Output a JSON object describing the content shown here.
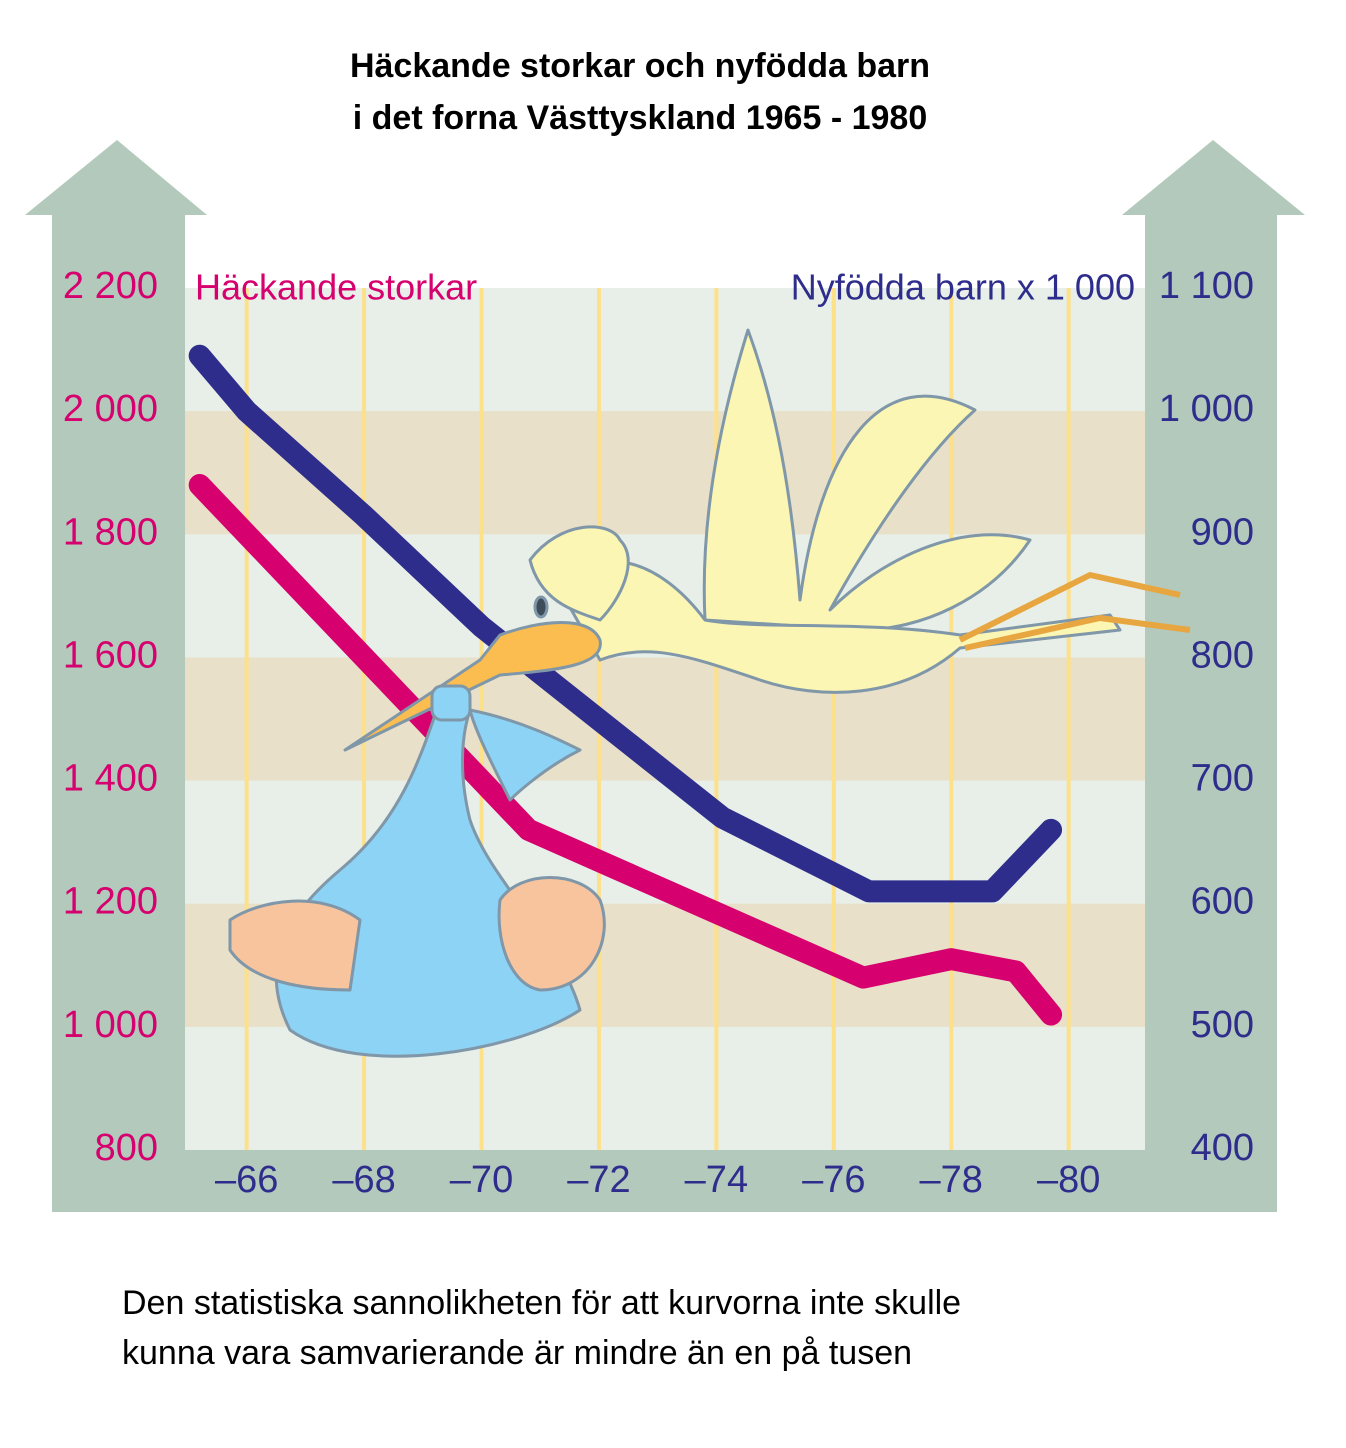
{
  "chart_data": {
    "type": "line",
    "title": [
      "Häckande storkar och nyfödda barn",
      "i det forna Västtyskland 1965 - 1980"
    ],
    "caption": [
      "Den statistiska sannolikheten för att kurvorna inte skulle",
      "kunna vara samvarierande är mindre än en på tusen"
    ],
    "xlim": [
      1964.95,
      1981.3
    ],
    "xticks": [
      {
        "value": 1966,
        "label": "–66"
      },
      {
        "value": 1968,
        "label": "–68"
      },
      {
        "value": 1970,
        "label": "–70"
      },
      {
        "value": 1972,
        "label": "–72"
      },
      {
        "value": 1974,
        "label": "–74"
      },
      {
        "value": 1976,
        "label": "–76"
      },
      {
        "value": 1978,
        "label": "–78"
      },
      {
        "value": 1980,
        "label": "–80"
      }
    ],
    "ylim": [
      800,
      2200
    ],
    "yticks": [
      800,
      {
        "value": 1000,
        "label": "1 000"
      },
      {
        "value": 1200,
        "label": "1 200"
      },
      {
        "value": 1400,
        "label": "1 400"
      },
      {
        "value": 1600,
        "label": "1 600"
      },
      {
        "value": 1800,
        "label": "1 800"
      },
      {
        "value": 2000,
        "label": "2 000"
      },
      {
        "value": 2200,
        "label": "2 200"
      }
    ],
    "y2lim": [
      400,
      1100
    ],
    "y2ticks": [
      400,
      500,
      600,
      700,
      800,
      900,
      {
        "value": 1000,
        "label": "1 000"
      },
      {
        "value": 1100,
        "label": "1 100"
      }
    ],
    "series": [
      {
        "name": "Häckande storkar",
        "color": "#d6006e",
        "x": [
          1965.2,
          1966,
          1970.8,
          1976.5,
          1978,
          1979.1,
          1979.7
        ],
        "values": [
          1880,
          1800,
          1320,
          1080,
          1110,
          1090,
          1020
        ]
      },
      {
        "name": "Nyfödda barn x 1 000",
        "color": "#2e2d8c",
        "axis": "y2",
        "x": [
          1965.2,
          1966,
          1968,
          1970,
          1974.1,
          1976.6,
          1978.7,
          1979.7
        ],
        "values": [
          1045,
          1000,
          915,
          825,
          670,
          610,
          610,
          660
        ]
      }
    ],
    "grid": true
  }
}
